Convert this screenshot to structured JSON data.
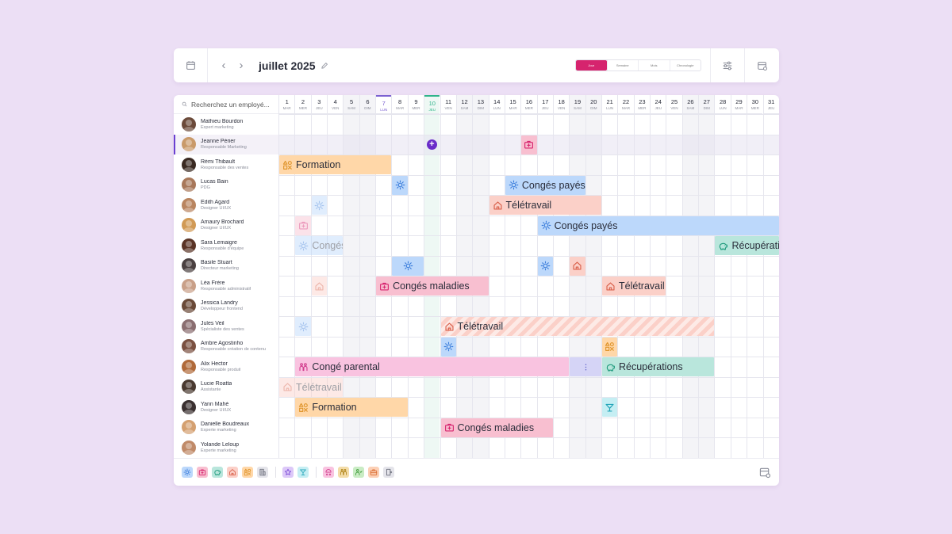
{
  "header": {
    "title": "juillet 2025",
    "views": [
      "Jour",
      "Semaine",
      "Mois",
      "Chronologie"
    ],
    "active_view": 0
  },
  "search": {
    "placeholder": "Recherchez un employé..."
  },
  "days": [
    {
      "n": "1",
      "d": "MAR"
    },
    {
      "n": "2",
      "d": "MER"
    },
    {
      "n": "3",
      "d": "JEU"
    },
    {
      "n": "4",
      "d": "VEN"
    },
    {
      "n": "5",
      "d": "SAM",
      "we": true
    },
    {
      "n": "6",
      "d": "DIM",
      "we": true
    },
    {
      "n": "7",
      "d": "LUN",
      "mark": "lun7"
    },
    {
      "n": "8",
      "d": "MAR"
    },
    {
      "n": "9",
      "d": "MER"
    },
    {
      "n": "10",
      "d": "JEU",
      "mark": "today"
    },
    {
      "n": "11",
      "d": "VEN"
    },
    {
      "n": "12",
      "d": "SAM",
      "we": true
    },
    {
      "n": "13",
      "d": "DIM",
      "we": true
    },
    {
      "n": "14",
      "d": "LUN"
    },
    {
      "n": "15",
      "d": "MAR"
    },
    {
      "n": "16",
      "d": "MER"
    },
    {
      "n": "17",
      "d": "JEU"
    },
    {
      "n": "18",
      "d": "VEN"
    },
    {
      "n": "19",
      "d": "SAM",
      "we": true
    },
    {
      "n": "20",
      "d": "DIM",
      "we": true
    },
    {
      "n": "21",
      "d": "LUN"
    },
    {
      "n": "22",
      "d": "MAR"
    },
    {
      "n": "23",
      "d": "MER"
    },
    {
      "n": "24",
      "d": "JEU"
    },
    {
      "n": "25",
      "d": "VEN"
    },
    {
      "n": "26",
      "d": "SAM",
      "we": true
    },
    {
      "n": "27",
      "d": "DIM",
      "we": true
    },
    {
      "n": "28",
      "d": "LUN"
    },
    {
      "n": "29",
      "d": "MAR"
    },
    {
      "n": "30",
      "d": "MER"
    },
    {
      "n": "31",
      "d": "JEU"
    }
  ],
  "employees": [
    {
      "name": "Mathieu Bourdon",
      "role": "Expert marketing",
      "color": "#6b4a3a"
    },
    {
      "name": "Jeanne Périer",
      "role": "Responsable Marketing",
      "color": "#c99a6a",
      "selected": true
    },
    {
      "name": "Rémi Thibault",
      "role": "Responsable des ventes",
      "color": "#3a2a22"
    },
    {
      "name": "Lucas Bain",
      "role": "PDG",
      "color": "#a8785a"
    },
    {
      "name": "Edith Agard",
      "role": "Designer UI/UX",
      "color": "#b98560"
    },
    {
      "name": "Amaury Brochard",
      "role": "Designer UI/UX",
      "color": "#d19a55"
    },
    {
      "name": "Sara Lemaigre",
      "role": "Responsable d'équipe",
      "color": "#5a3426"
    },
    {
      "name": "Basile Stuart",
      "role": "Directeur marketing",
      "color": "#4a4040"
    },
    {
      "name": "Léa Frère",
      "role": "Responsable administratif",
      "color": "#c9a088"
    },
    {
      "name": "Jessica Landry",
      "role": "Développeur frontend",
      "color": "#6a4a38"
    },
    {
      "name": "Jules Veil",
      "role": "Spécialiste des ventes",
      "color": "#8a6e70"
    },
    {
      "name": "Ambre Agostinho",
      "role": "Responsable création de contenu",
      "color": "#7a5040"
    },
    {
      "name": "Alix Hector",
      "role": "Responsable produit",
      "color": "#b06a3a"
    },
    {
      "name": "Lucie Roatta",
      "role": "Assistante",
      "color": "#4a3a30"
    },
    {
      "name": "Yann Mahé",
      "role": "Designer UI/UX",
      "color": "#3a3030"
    },
    {
      "name": "Danielle Boudreaux",
      "role": "Experte marketing",
      "color": "#d4a070"
    },
    {
      "name": "Yolande Leloup",
      "role": "Experte marketing",
      "color": "#c08a68"
    }
  ],
  "event_types": {
    "formation": {
      "bg": "#ffd7a8",
      "ic": "#e0962e",
      "icon": "shapes-icon"
    },
    "conges": {
      "bg": "#bcd8fb",
      "ic": "#3b7ddb",
      "icon": "sun-icon"
    },
    "teletravail": {
      "bg": "#fbd0c8",
      "ic": "#d9604a",
      "icon": "house-icon"
    },
    "recup": {
      "bg": "#b9e6dc",
      "ic": "#1f9a7c",
      "icon": "piggy-bank-icon"
    },
    "maladie": {
      "bg": "#f8bfd0",
      "ic": "#d6246e",
      "icon": "medkit-icon"
    },
    "parental": {
      "bg": "#f9c3e0",
      "ic": "#d13d8d",
      "icon": "family-icon"
    },
    "event": {
      "bg": "#c5eef3",
      "ic": "#23a4b8",
      "icon": "cocktail-icon"
    },
    "more": {
      "bg": "#d5d4f6",
      "ic": "#6061c9",
      "icon": "more-icon"
    }
  },
  "events": [
    {
      "row": 1,
      "start": 16,
      "end": 16,
      "type": "maladie"
    },
    {
      "row": 2,
      "start": 1,
      "end": 7,
      "type": "formation",
      "label": "Formation"
    },
    {
      "row": 3,
      "start": 8,
      "end": 8,
      "type": "conges"
    },
    {
      "row": 3,
      "start": 15,
      "end": 19,
      "type": "conges",
      "label": "Congés payés"
    },
    {
      "row": 4,
      "start": 3,
      "end": 3,
      "type": "conges",
      "faded": true
    },
    {
      "row": 4,
      "start": 14,
      "end": 20,
      "type": "teletravail",
      "label": "Télétravail"
    },
    {
      "row": 5,
      "start": 2,
      "end": 2,
      "type": "maladie",
      "faded": true
    },
    {
      "row": 5,
      "start": 17,
      "end": 31,
      "type": "conges",
      "label": "Congés payés"
    },
    {
      "row": 6,
      "start": 2,
      "end": 4,
      "type": "conges",
      "label": "Congés payés",
      "faded": true
    },
    {
      "row": 6,
      "start": 28,
      "end": 31,
      "type": "recup",
      "label": "Récupérations"
    },
    {
      "row": 7,
      "start": 8,
      "end": 9,
      "type": "conges"
    },
    {
      "row": 7,
      "start": 17,
      "end": 17,
      "type": "conges"
    },
    {
      "row": 7,
      "start": 19,
      "end": 19,
      "type": "teletravail"
    },
    {
      "row": 8,
      "start": 3,
      "end": 3,
      "type": "teletravail",
      "faded": true
    },
    {
      "row": 8,
      "start": 7,
      "end": 13,
      "type": "maladie",
      "label": "Congés maladies"
    },
    {
      "row": 8,
      "start": 21,
      "end": 24,
      "type": "teletravail",
      "label": "Télétravail"
    },
    {
      "row": 10,
      "start": 2,
      "end": 2,
      "type": "conges",
      "faded": true
    },
    {
      "row": 10,
      "start": 11,
      "end": 27,
      "type": "teletravail",
      "label": "Télétravail",
      "hatched": true
    },
    {
      "row": 11,
      "start": 11,
      "end": 11,
      "type": "conges"
    },
    {
      "row": 11,
      "start": 21,
      "end": 21,
      "type": "formation"
    },
    {
      "row": 12,
      "start": 2,
      "end": 18,
      "type": "parental",
      "label": "Congé parental"
    },
    {
      "row": 12,
      "start": 19,
      "end": 20,
      "type": "more"
    },
    {
      "row": 12,
      "start": 21,
      "end": 27,
      "type": "recup",
      "label": "Récupérations"
    },
    {
      "row": 13,
      "start": 1,
      "end": 4,
      "type": "teletravail",
      "label": "Télétravail",
      "faded": true
    },
    {
      "row": 14,
      "start": 2,
      "end": 8,
      "type": "formation",
      "label": "Formation"
    },
    {
      "row": 14,
      "start": 21,
      "end": 21,
      "type": "event"
    },
    {
      "row": 15,
      "start": 11,
      "end": 17,
      "type": "maladie",
      "label": "Congés maladies"
    }
  ],
  "add_marker": {
    "row": 1,
    "day": 10
  },
  "legend": [
    {
      "icon": "sun-icon",
      "bg": "#bcd8fb",
      "ic": "#3b7ddb"
    },
    {
      "icon": "medkit-icon",
      "bg": "#f8bfd0",
      "ic": "#d6246e"
    },
    {
      "icon": "piggy-bank-icon",
      "bg": "#b9e6dc",
      "ic": "#1f9a7c"
    },
    {
      "icon": "house-icon",
      "bg": "#fbd0c8",
      "ic": "#d9604a"
    },
    {
      "icon": "shapes-icon",
      "bg": "#ffd7a8",
      "ic": "#e0962e"
    },
    {
      "icon": "building-icon",
      "bg": "#e4e4ea",
      "ic": "#6a6d7a",
      "sep": true
    },
    {
      "icon": "star-icon",
      "bg": "#dcc8f8",
      "ic": "#7b4cd6"
    },
    {
      "icon": "cocktail-icon",
      "bg": "#c5eef3",
      "ic": "#23a4b8",
      "sep": true
    },
    {
      "icon": "baby-icon",
      "bg": "#f9c3e0",
      "ic": "#d13d8d"
    },
    {
      "icon": "family-icon",
      "bg": "#f3dca8",
      "ic": "#b08418"
    },
    {
      "icon": "person-icon",
      "bg": "#c9ecc4",
      "ic": "#3f9a3a"
    },
    {
      "icon": "briefcase-icon",
      "bg": "#fcd0b6",
      "ic": "#d96a2e"
    },
    {
      "icon": "door-icon",
      "bg": "#e4e4ea",
      "ic": "#6a6d7a"
    }
  ]
}
